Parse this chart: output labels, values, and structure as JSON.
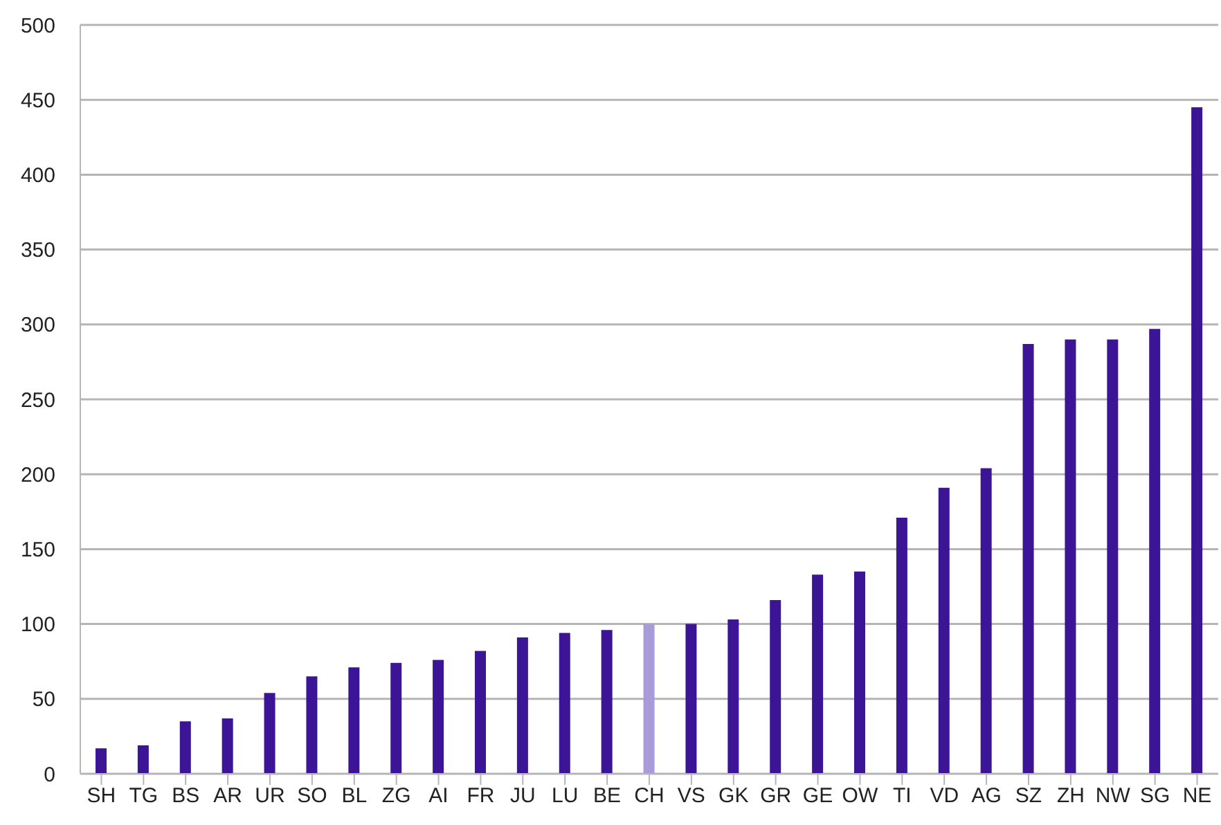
{
  "chart_data": {
    "type": "bar",
    "categories": [
      "SH",
      "TG",
      "BS",
      "AR",
      "UR",
      "SO",
      "BL",
      "ZG",
      "AI",
      "FR",
      "JU",
      "LU",
      "BE",
      "CH",
      "VS",
      "GK",
      "GR",
      "GE",
      "OW",
      "TI",
      "VD",
      "AG",
      "SZ",
      "ZH",
      "NW",
      "SG",
      "NE"
    ],
    "values": [
      17,
      19,
      35,
      37,
      54,
      65,
      71,
      74,
      76,
      82,
      91,
      94,
      96,
      100,
      100,
      103,
      116,
      133,
      135,
      171,
      191,
      204,
      287,
      290,
      290,
      297,
      445
    ],
    "colors": [
      "#3c1596",
      "#3c1596",
      "#3c1596",
      "#3c1596",
      "#3c1596",
      "#3c1596",
      "#3c1596",
      "#3c1596",
      "#3c1596",
      "#3c1596",
      "#3c1596",
      "#3c1596",
      "#3c1596",
      "#a99bd8",
      "#3c1596",
      "#3c1596",
      "#3c1596",
      "#3c1596",
      "#3c1596",
      "#3c1596",
      "#3c1596",
      "#3c1596",
      "#3c1596",
      "#3c1596",
      "#3c1596",
      "#3c1596",
      "#3c1596"
    ],
    "ylim": [
      0,
      500
    ],
    "yticks": [
      0,
      50,
      100,
      150,
      200,
      250,
      300,
      350,
      400,
      450,
      500
    ],
    "grid": "y"
  }
}
